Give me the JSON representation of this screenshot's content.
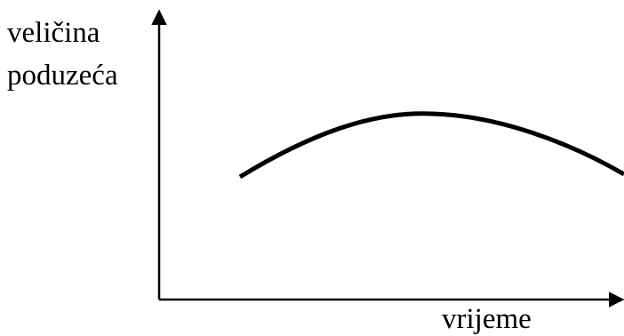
{
  "axes": {
    "y_label_lines": [
      "veličina",
      "poduzeća"
    ],
    "x_label": "vrijeme"
  },
  "colors": {
    "stroke": "#000000",
    "background": "#ffffff"
  }
}
